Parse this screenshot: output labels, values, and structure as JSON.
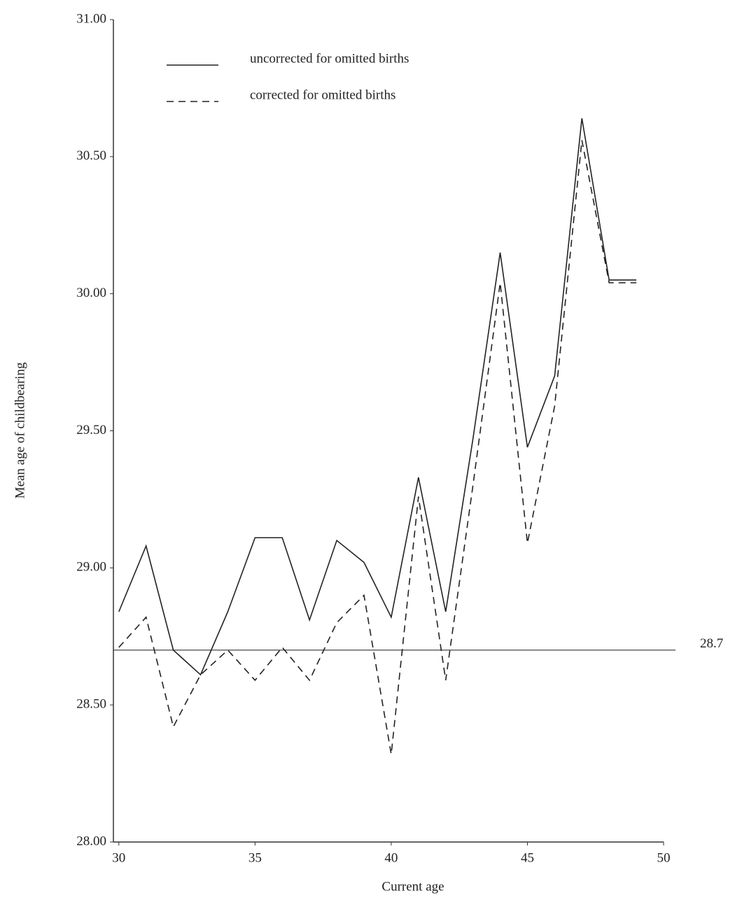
{
  "chart_data": {
    "type": "line",
    "x_label": "Current age",
    "y_label": "Mean age of childbearing",
    "x": [
      30,
      31,
      32,
      33,
      34,
      35,
      36,
      37,
      38,
      39,
      40,
      41,
      42,
      43,
      44,
      45,
      46,
      47,
      48,
      49
    ],
    "series": [
      {
        "name": "uncorrected for omitted births",
        "color": "#222222",
        "style": "solid",
        "values": [
          28.84,
          29.08,
          28.7,
          28.61,
          28.84,
          29.11,
          29.11,
          28.81,
          29.1,
          29.02,
          28.82,
          29.33,
          28.84,
          29.47,
          30.15,
          29.44,
          29.7,
          30.64,
          30.05,
          30.05
        ]
      },
      {
        "name": "corrected for omitted births",
        "color": "#222222",
        "style": "dashed",
        "values": [
          28.71,
          28.82,
          28.42,
          28.61,
          28.7,
          28.59,
          28.71,
          28.59,
          28.8,
          28.9,
          28.32,
          29.26,
          28.59,
          29.3,
          30.04,
          29.09,
          29.59,
          30.56,
          30.04,
          30.04
        ]
      }
    ],
    "hline": 28.7,
    "xlim": [
      29.8,
      50
    ],
    "xticks": [
      30,
      35,
      40,
      45,
      50
    ],
    "ylim": [
      28,
      31
    ],
    "yticks": [
      {
        "value": 28,
        "label": "28.00"
      },
      {
        "value": 28.5,
        "label": "28.50"
      },
      {
        "value": 29,
        "label": "29.00"
      },
      {
        "value": 29.5,
        "label": "29.50"
      },
      {
        "value": 30,
        "label": "30.00"
      },
      {
        "value": 30.5,
        "label": "30.50"
      },
      {
        "value": 31,
        "label": "31.00"
      }
    ],
    "legend": "top-left",
    "grid": false
  }
}
